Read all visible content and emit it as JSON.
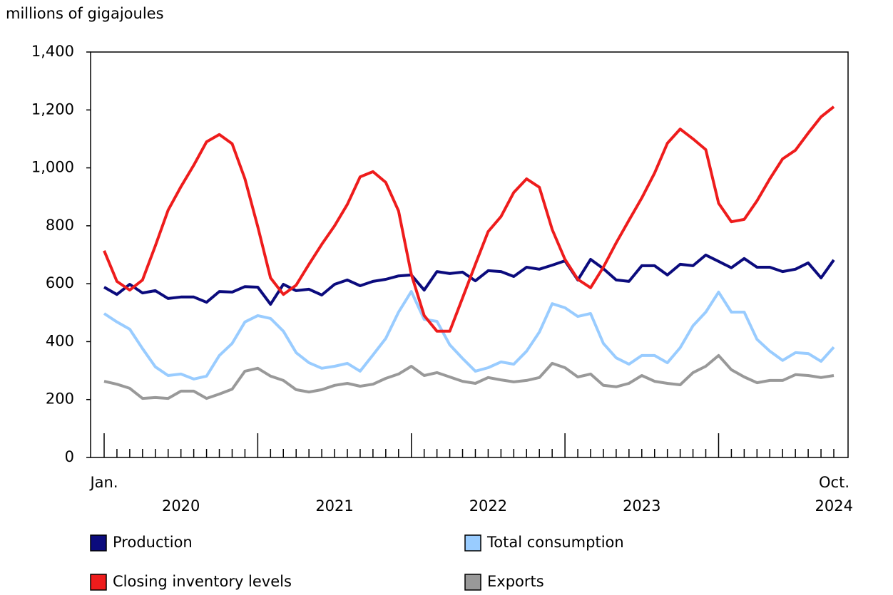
{
  "chart_data": {
    "type": "line",
    "y_axis_label": "millions of gigajoules",
    "categories": [
      "Jan.",
      null,
      null,
      null,
      null,
      null,
      null,
      null,
      null,
      null,
      null,
      null,
      null,
      null,
      null,
      null,
      null,
      null,
      null,
      null,
      null,
      null,
      null,
      null,
      null,
      null,
      null,
      null,
      null,
      null,
      null,
      null,
      null,
      null,
      null,
      null,
      null,
      null,
      null,
      null,
      null,
      null,
      null,
      null,
      null,
      null,
      null,
      null,
      null,
      null,
      null,
      null,
      null,
      null,
      null,
      null,
      null,
      "Oct."
    ],
    "years": [
      "2020",
      "2021",
      "2022",
      "2023",
      "2024"
    ],
    "ylim": [
      0,
      1400
    ],
    "yticks": [
      0,
      200,
      400,
      600,
      800,
      {
        "value": 1000,
        "label": "1,000"
      },
      {
        "value": 1200,
        "label": "1,200"
      },
      {
        "value": 1400,
        "label": "1,400"
      }
    ],
    "series": [
      {
        "name": "Production",
        "color": "#0b0b7d",
        "values": [
          588,
          563,
          598,
          568,
          576,
          549,
          554,
          554,
          536,
          573,
          571,
          590,
          588,
          529,
          598,
          576,
          581,
          561,
          598,
          613,
          593,
          608,
          615,
          627,
          630,
          578,
          642,
          635,
          640,
          610,
          645,
          642,
          625,
          657,
          650,
          664,
          679,
          613,
          684,
          652,
          613,
          608,
          662,
          662,
          630,
          667,
          662,
          699,
          677,
          655,
          687,
          657,
          657,
          642,
          650,
          672,
          620,
          682
        ]
      },
      {
        "name": "Total consumption",
        "color": "#99ccff",
        "values": [
          497,
          468,
          443,
          376,
          313,
          283,
          288,
          271,
          281,
          352,
          394,
          468,
          490,
          480,
          436,
          362,
          327,
          308,
          315,
          325,
          298,
          354,
          411,
          502,
          573,
          477,
          470,
          389,
          342,
          298,
          310,
          330,
          322,
          367,
          433,
          531,
          517,
          487,
          497,
          394,
          344,
          322,
          352,
          352,
          327,
          379,
          455,
          502,
          571,
          502,
          502,
          408,
          367,
          335,
          362,
          359,
          332,
          381
        ]
      },
      {
        "name": "Closing inventory levels",
        "color": "#ee1c1c",
        "values": [
          714,
          608,
          578,
          613,
          731,
          854,
          935,
          1009,
          1090,
          1115,
          1083,
          962,
          797,
          620,
          563,
          595,
          667,
          736,
          800,
          874,
          969,
          987,
          950,
          851,
          632,
          490,
          436,
          436,
          551,
          667,
          780,
          832,
          915,
          962,
          933,
          787,
          684,
          615,
          586,
          657,
          741,
          819,
          896,
          982,
          1085,
          1134,
          1100,
          1063,
          878,
          814,
          822,
          886,
          962,
          1031,
          1061,
          1120,
          1176,
          1211
        ]
      },
      {
        "name": "Exports",
        "color": "#999999",
        "values": [
          263,
          253,
          239,
          204,
          207,
          204,
          229,
          229,
          204,
          219,
          236,
          298,
          308,
          281,
          266,
          234,
          226,
          234,
          249,
          256,
          246,
          253,
          273,
          288,
          315,
          283,
          293,
          278,
          263,
          256,
          276,
          268,
          261,
          266,
          276,
          325,
          310,
          278,
          288,
          249,
          244,
          256,
          283,
          263,
          256,
          251,
          293,
          315,
          352,
          303,
          278,
          258,
          266,
          266,
          286,
          283,
          276,
          283
        ]
      }
    ]
  }
}
